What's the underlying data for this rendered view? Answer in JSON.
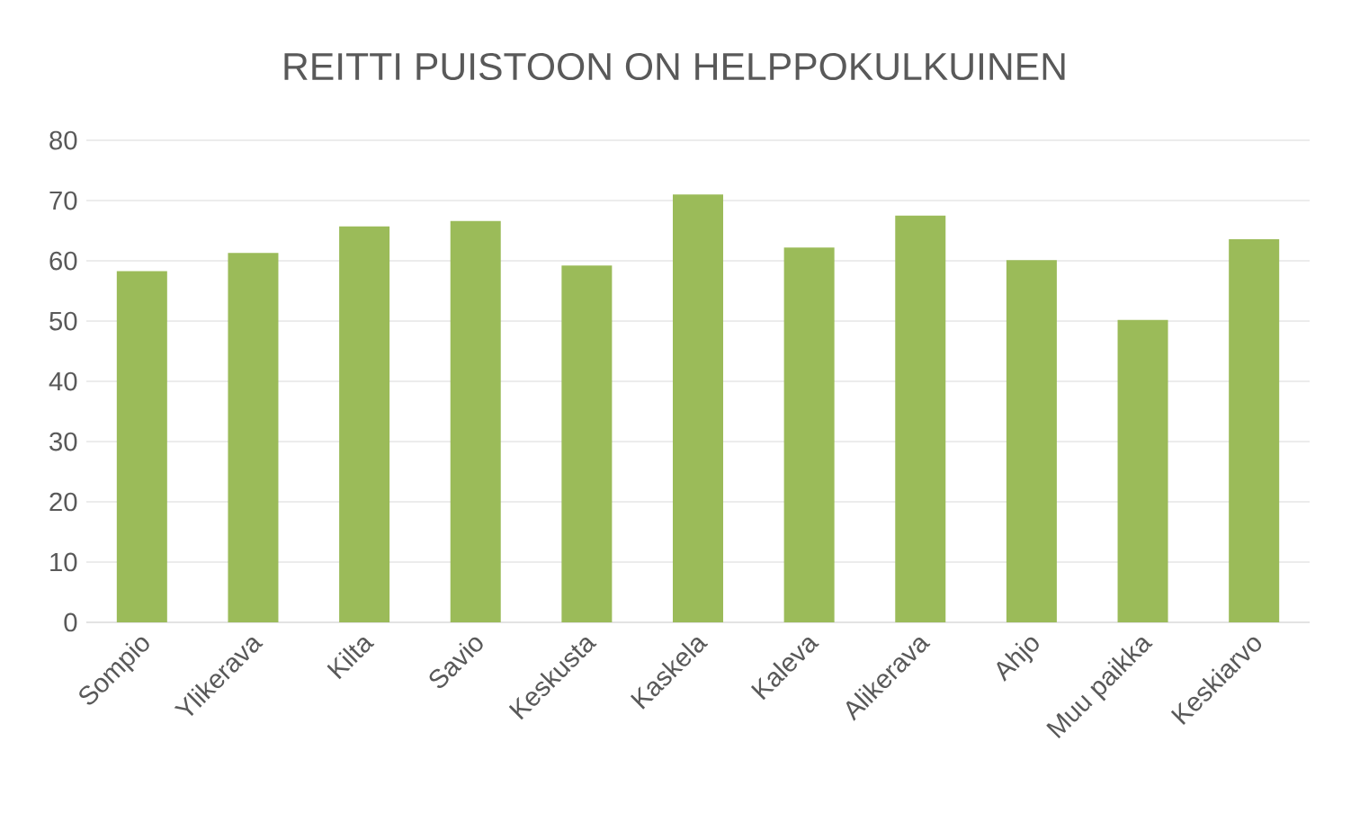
{
  "chart_data": {
    "type": "bar",
    "title": "REITTI PUISTOON ON HELPPOKULKUINEN",
    "categories": [
      "Sompio",
      "Ylikerava",
      "Kilta",
      "Savio",
      "Keskusta",
      "Kaskela",
      "Kaleva",
      "Alikerava",
      "Ahjo",
      "Muu paikka",
      "Keskiarvo"
    ],
    "values": [
      58.3,
      61.3,
      65.7,
      66.6,
      59.2,
      71.0,
      62.2,
      67.5,
      60.1,
      50.2,
      63.6
    ],
    "color": "#9bbb59",
    "ylim": [
      0,
      80
    ],
    "yticks": [
      0,
      10,
      20,
      30,
      40,
      50,
      60,
      70,
      80
    ],
    "grid": "y"
  }
}
